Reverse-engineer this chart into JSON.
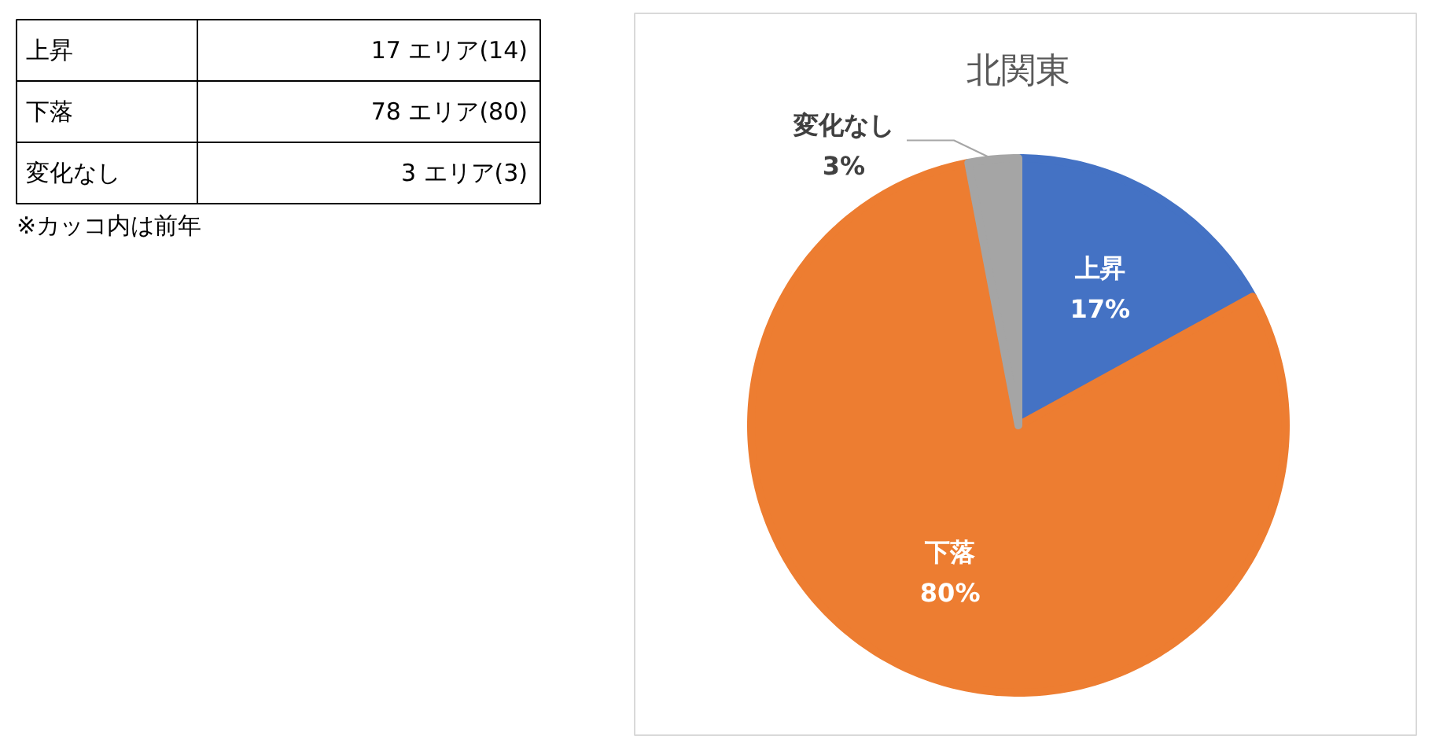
{
  "chart_data": [
    {
      "type": "other",
      "categories": [
        "上昇",
        "下落",
        "変化なし"
      ],
      "value_labels": [
        "17 エリア(14)",
        "78 エリア(80)",
        "3 エリア(3)"
      ],
      "annotations": [
        "※カッコ内は前年"
      ]
    },
    {
      "type": "pie",
      "title": "北関東",
      "categories": [
        "上昇",
        "下落",
        "変化なし"
      ],
      "values": [
        17,
        80,
        3
      ],
      "colors": [
        "#4472c4",
        "#ed7d31",
        "#a5a5a5"
      ],
      "value_labels": [
        "17%",
        "80%",
        "3%"
      ]
    }
  ]
}
